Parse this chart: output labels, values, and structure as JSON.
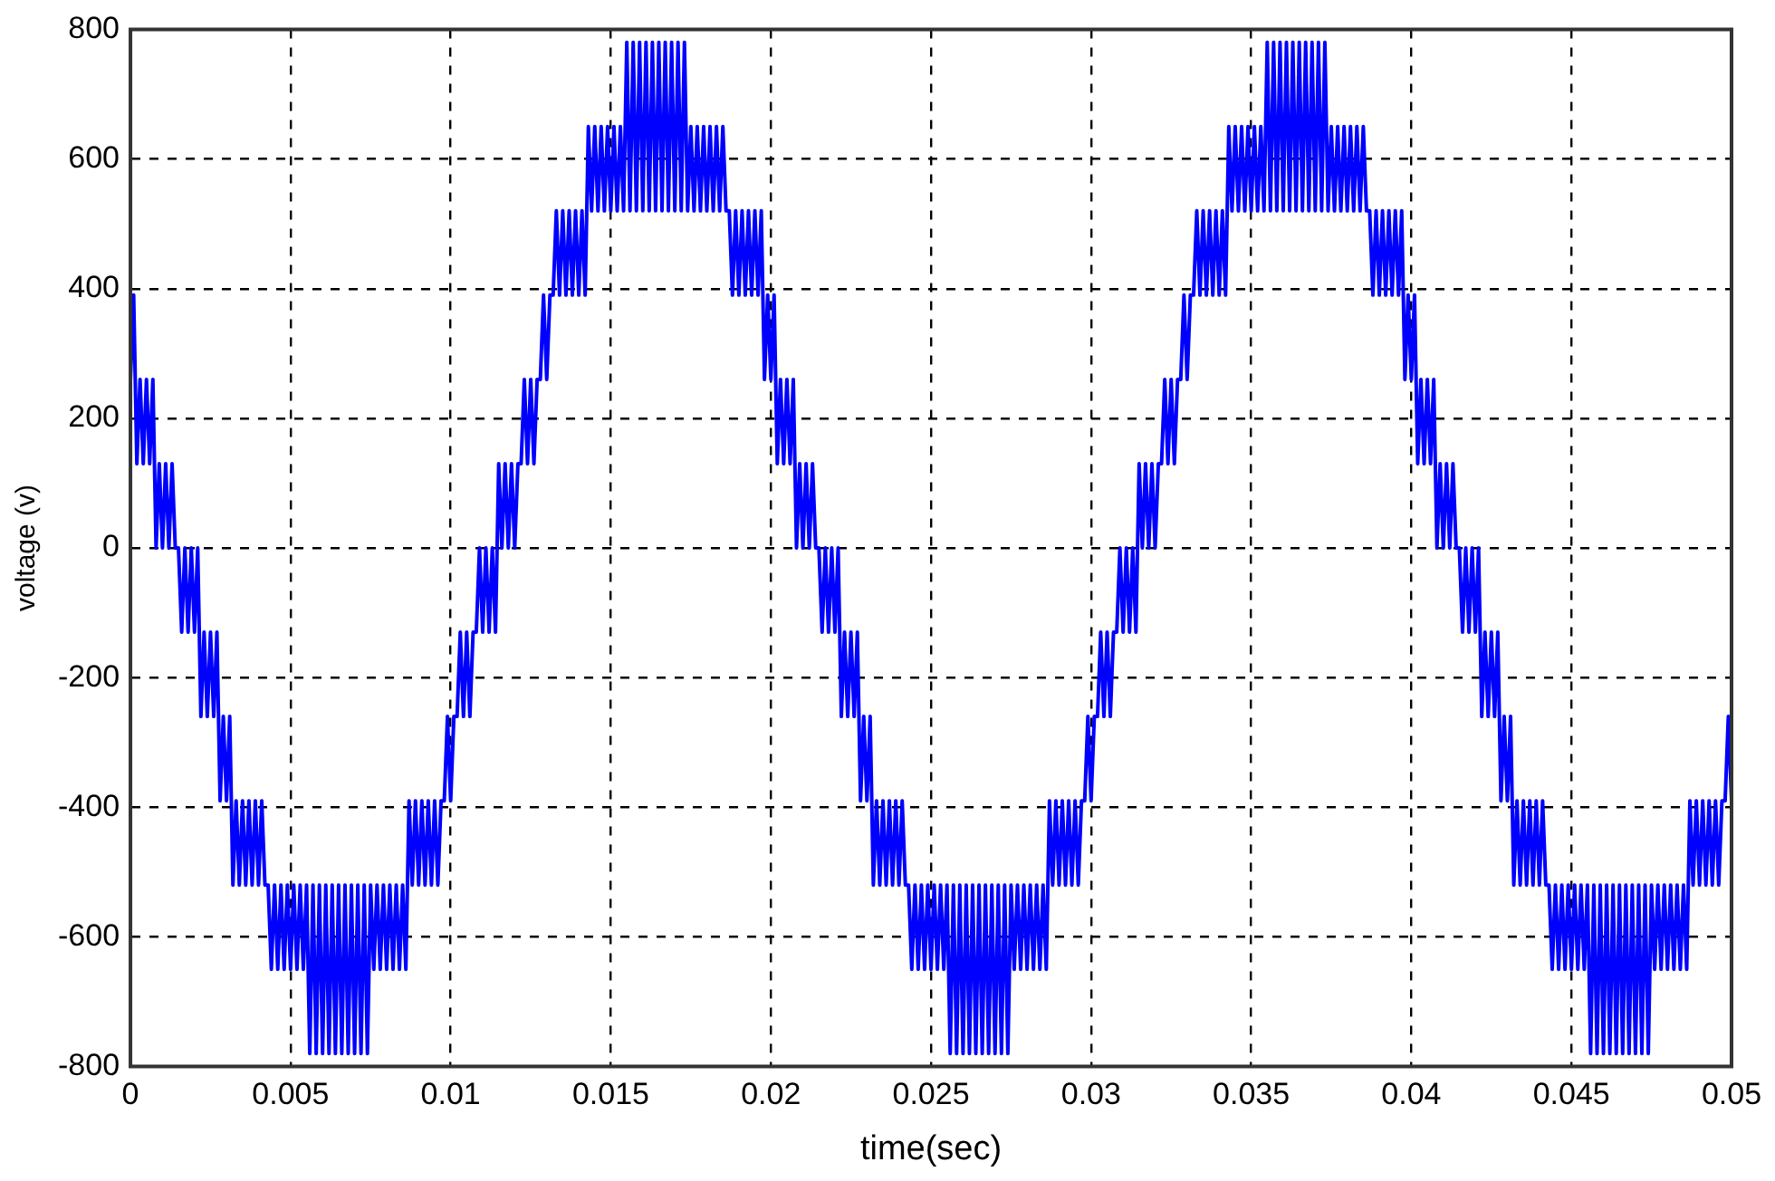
{
  "chart_data": {
    "type": "line",
    "xlabel": "time(sec)",
    "ylabel": "voltage (v)",
    "xlim": [
      0,
      0.05
    ],
    "xticks": [
      0,
      0.005,
      0.01,
      0.015,
      0.02,
      0.025,
      0.03,
      0.035,
      0.04,
      0.045,
      0.05
    ],
    "ylim": [
      -800,
      800
    ],
    "yticks": [
      -800,
      -600,
      -400,
      -200,
      0,
      200,
      400,
      600,
      800
    ],
    "grid": true,
    "x": [
      0,
      0.0001,
      0.0002,
      0.0003,
      0.0004,
      0.0005,
      0.0006,
      0.0007,
      0.0008,
      0.0009,
      0.001,
      0.0011,
      0.0012,
      0.0013,
      0.0014,
      0.0015,
      0.0016,
      0.0017,
      0.0018,
      0.0019,
      0.002,
      0.0021,
      0.0022,
      0.0023,
      0.0024,
      0.0025,
      0.0026,
      0.0027,
      0.0028,
      0.0029,
      0.003,
      0.0031,
      0.0032,
      0.0033,
      0.0034,
      0.0035,
      0.0036,
      0.0037,
      0.0038,
      0.0039,
      0.004,
      0.0041,
      0.0042,
      0.0043,
      0.0044,
      0.0045,
      0.0046,
      0.0047,
      0.0048,
      0.0049,
      0.005,
      0.0051,
      0.0052,
      0.0053,
      0.0054,
      0.0055,
      0.0056,
      0.0057,
      0.0058,
      0.0059,
      0.006,
      0.0061,
      0.0062,
      0.0063,
      0.0064,
      0.0065,
      0.0066,
      0.0067,
      0.0068,
      0.0069,
      0.007,
      0.0071,
      0.0072,
      0.0073,
      0.0074,
      0.0075,
      0.0076,
      0.0077,
      0.0078,
      0.0079,
      0.008,
      0.0081,
      0.0082,
      0.0083,
      0.0084,
      0.0085,
      0.0086,
      0.0087,
      0.0088,
      0.0089,
      0.009,
      0.0091,
      0.0092,
      0.0093,
      0.0094,
      0.0095,
      0.0096,
      0.0097,
      0.0098,
      0.0099,
      0.01,
      0.0101,
      0.0102,
      0.0103,
      0.0104,
      0.0105,
      0.0106,
      0.0107,
      0.0108,
      0.0109,
      0.011,
      0.0111,
      0.0112,
      0.0113,
      0.0114,
      0.0115,
      0.0116,
      0.0117,
      0.0118,
      0.0119,
      0.012,
      0.0121,
      0.0122,
      0.0123,
      0.0124,
      0.0125,
      0.0126,
      0.0127,
      0.0128,
      0.0129,
      0.013,
      0.0131,
      0.0132,
      0.0133,
      0.0134,
      0.0135,
      0.0136,
      0.0137,
      0.0138,
      0.0139,
      0.014,
      0.0141,
      0.0142,
      0.0143,
      0.0144,
      0.0145,
      0.0146,
      0.0147,
      0.0148,
      0.0149,
      0.015,
      0.0151,
      0.0152,
      0.0153,
      0.0154,
      0.0155,
      0.0156,
      0.0157,
      0.0158,
      0.0159,
      0.016,
      0.0161,
      0.0162,
      0.0163,
      0.0164,
      0.0165,
      0.0166,
      0.0167,
      0.0168,
      0.0169,
      0.017,
      0.0171,
      0.0172,
      0.0173,
      0.0174,
      0.0175,
      0.0176,
      0.0177,
      0.0178,
      0.0179,
      0.018,
      0.0181,
      0.0182,
      0.0183,
      0.0184,
      0.0185,
      0.0186,
      0.0187,
      0.0188,
      0.0189,
      0.019,
      0.0191,
      0.0192,
      0.0193,
      0.0194,
      0.0195,
      0.0196,
      0.0197,
      0.0198,
      0.0199,
      0.02,
      0.0201,
      0.0202,
      0.0203,
      0.0204,
      0.0205,
      0.0206,
      0.0207,
      0.0208,
      0.0209,
      0.021,
      0.0211,
      0.0212,
      0.0213,
      0.0214,
      0.0215,
      0.0216,
      0.0217,
      0.0218,
      0.0219,
      0.022,
      0.0221,
      0.0222,
      0.0223,
      0.0224,
      0.0225,
      0.0226,
      0.0227,
      0.0228,
      0.0229,
      0.023,
      0.0231,
      0.0232,
      0.0233,
      0.0234,
      0.0235,
      0.0236,
      0.0237,
      0.0238,
      0.0239,
      0.024,
      0.0241,
      0.0242,
      0.0243,
      0.0244,
      0.0245,
      0.0246,
      0.0247,
      0.0248,
      0.0249,
      0.025,
      0.0251,
      0.0252,
      0.0253,
      0.0254,
      0.0255,
      0.0256,
      0.0257,
      0.0258,
      0.0259,
      0.026,
      0.0261,
      0.0262,
      0.0263,
      0.0264,
      0.0265,
      0.0266,
      0.0267,
      0.0268,
      0.0269,
      0.027,
      0.0271,
      0.0272,
      0.0273,
      0.0274,
      0.0275,
      0.0276,
      0.0277,
      0.0278,
      0.0279,
      0.028,
      0.0281,
      0.0282,
      0.0283,
      0.0284,
      0.0285,
      0.0286,
      0.0287,
      0.0288,
      0.0289,
      0.029,
      0.0291,
      0.0292,
      0.0293,
      0.0294,
      0.0295,
      0.0296,
      0.0297,
      0.0298,
      0.0299,
      0.03,
      0.0301,
      0.0302,
      0.0303,
      0.0304,
      0.0305,
      0.0306,
      0.0307,
      0.0308,
      0.0309,
      0.031,
      0.0311,
      0.0312,
      0.0313,
      0.0314,
      0.0315,
      0.0316,
      0.0317,
      0.0318,
      0.0319,
      0.032,
      0.0321,
      0.0322,
      0.0323,
      0.0324,
      0.0325,
      0.0326,
      0.0327,
      0.0328,
      0.0329,
      0.033,
      0.0331,
      0.0332,
      0.0333,
      0.0334,
      0.0335,
      0.0336,
      0.0337,
      0.0338,
      0.0339,
      0.034,
      0.0341,
      0.0342,
      0.0343,
      0.0344,
      0.0345,
      0.0346,
      0.0347,
      0.0348,
      0.0349,
      0.035,
      0.0351,
      0.0352,
      0.0353,
      0.0354,
      0.0355,
      0.0356,
      0.0357,
      0.0358,
      0.0359,
      0.036,
      0.0361,
      0.0362,
      0.0363,
      0.0364,
      0.0365,
      0.0366,
      0.0367,
      0.0368,
      0.0369,
      0.037,
      0.0371,
      0.0372,
      0.0373,
      0.0374,
      0.0375,
      0.0376,
      0.0377,
      0.0378,
      0.0379,
      0.038,
      0.0381,
      0.0382,
      0.0383,
      0.0384,
      0.0385,
      0.0386,
      0.0387,
      0.0388,
      0.0389,
      0.039,
      0.0391,
      0.0392,
      0.0393,
      0.0394,
      0.0395,
      0.0396,
      0.0397,
      0.0398,
      0.0399,
      0.04,
      0.0401,
      0.0402,
      0.0403,
      0.0404,
      0.0405,
      0.0406,
      0.0407,
      0.0408,
      0.0409,
      0.041,
      0.0411,
      0.0412,
      0.0413,
      0.0414,
      0.0415,
      0.0416,
      0.0417,
      0.0418,
      0.0419,
      0.042,
      0.0421,
      0.0422,
      0.0423,
      0.0424,
      0.0425,
      0.0426,
      0.0427,
      0.0428,
      0.0429,
      0.043,
      0.0431,
      0.0432,
      0.0433,
      0.0434,
      0.0435,
      0.0436,
      0.0437,
      0.0438,
      0.0439,
      0.044,
      0.0441,
      0.0442,
      0.0443,
      0.0444,
      0.0445,
      0.0446,
      0.0447,
      0.0448,
      0.0449,
      0.045,
      0.0451,
      0.0452,
      0.0453,
      0.0454,
      0.0455,
      0.0456,
      0.0457,
      0.0458,
      0.0459,
      0.046,
      0.0461,
      0.0462,
      0.0463,
      0.0464,
      0.0465,
      0.0466,
      0.0467,
      0.0468,
      0.0469,
      0.047,
      0.0471,
      0.0472,
      0.0473,
      0.0474,
      0.0475,
      0.0476,
      0.0477,
      0.0478,
      0.0479,
      0.048,
      0.0481,
      0.0482,
      0.0483,
      0.0484,
      0.0485,
      0.0486,
      0.0487,
      0.0488,
      0.0489,
      0.049,
      0.0491,
      0.0492,
      0.0493,
      0.0494,
      0.0495,
      0.0496,
      0.0497,
      0.0498,
      0.0499,
      0.05
    ],
    "series": [
      {
        "color": "#0000ff",
        "values": [
          260,
          390,
          130,
          260,
          130,
          260,
          130,
          260,
          0,
          130,
          0,
          130,
          0,
          130,
          0,
          0,
          -130,
          0,
          -130,
          0,
          -130,
          0,
          -260,
          -130,
          -260,
          -130,
          -260,
          -130,
          -390,
          -260,
          -390,
          -260,
          -520,
          -390,
          -520,
          -390,
          -520,
          -390,
          -520,
          -390,
          -520,
          -390,
          -520,
          -520,
          -650,
          -520,
          -650,
          -520,
          -650,
          -520,
          -650,
          -520,
          -650,
          -520,
          -650,
          -520,
          -780,
          -520,
          -780,
          -520,
          -780,
          -520,
          -780,
          -520,
          -780,
          -520,
          -780,
          -520,
          -780,
          -520,
          -780,
          -520,
          -780,
          -520,
          -780,
          -520,
          -650,
          -520,
          -650,
          -520,
          -650,
          -520,
          -650,
          -520,
          -650,
          -520,
          -650,
          -390,
          -520,
          -390,
          -520,
          -390,
          -520,
          -390,
          -520,
          -390,
          -520,
          -390,
          -390,
          -260,
          -390,
          -260,
          -260,
          -130,
          -260,
          -130,
          -260,
          -130,
          -130,
          0,
          -130,
          0,
          -130,
          0,
          -130,
          130,
          0,
          130,
          0,
          130,
          0,
          130,
          130,
          260,
          130,
          260,
          130,
          260,
          260,
          390,
          260,
          390,
          390,
          520,
          390,
          520,
          390,
          520,
          390,
          520,
          390,
          520,
          390,
          650,
          520,
          650,
          520,
          650,
          520,
          650,
          520,
          650,
          520,
          650,
          520,
          780,
          520,
          780,
          520,
          780,
          520,
          780,
          520,
          780,
          520,
          780,
          520,
          780,
          520,
          780,
          520,
          780,
          520,
          780,
          520,
          650,
          520,
          650,
          520,
          650,
          520,
          650,
          520,
          650,
          520,
          650,
          520,
          520,
          390,
          520,
          390,
          520,
          390,
          520,
          390,
          520,
          390,
          520,
          260,
          390,
          260,
          390,
          130,
          260,
          130,
          260,
          130,
          260,
          0,
          130,
          0,
          130,
          0,
          130,
          0,
          0,
          -130,
          0,
          -130,
          0,
          -130,
          0,
          -260,
          -130,
          -260,
          -130,
          -260,
          -130,
          -390,
          -260,
          -390,
          -260,
          -520,
          -390,
          -520,
          -390,
          -520,
          -390,
          -520,
          -390,
          -520,
          -390,
          -520,
          -520,
          -650,
          -520,
          -650,
          -520,
          -650,
          -520,
          -650,
          -520,
          -650,
          -520,
          -650,
          -520,
          -780,
          -520,
          -780,
          -520,
          -780,
          -520,
          -780,
          -520,
          -780,
          -520,
          -780,
          -520,
          -780,
          -520,
          -780,
          -520,
          -780,
          -520,
          -780,
          -520,
          -650,
          -520,
          -650,
          -520,
          -650,
          -520,
          -650,
          -520,
          -650,
          -520,
          -650,
          -390,
          -520,
          -390,
          -520,
          -390,
          -520,
          -390,
          -520,
          -390,
          -520,
          -390,
          -390,
          -260,
          -390,
          -260,
          -260,
          -130,
          -260,
          -130,
          -260,
          -130,
          -130,
          0,
          -130,
          0,
          -130,
          0,
          -130,
          130,
          0,
          130,
          0,
          130,
          0,
          130,
          130,
          260,
          130,
          260,
          130,
          260,
          260,
          390,
          260,
          390,
          390,
          520,
          390,
          520,
          390,
          520,
          390,
          520,
          390,
          520,
          390,
          650,
          520,
          650,
          520,
          650,
          520,
          650,
          520,
          650,
          520,
          650,
          520,
          780,
          520,
          780,
          520,
          780,
          520,
          780,
          520,
          780,
          520,
          780,
          520,
          780,
          520,
          780,
          520,
          780,
          520,
          780,
          520,
          650,
          520,
          650,
          520,
          650,
          520,
          650,
          520,
          650,
          520,
          650,
          520,
          520,
          390,
          520,
          390,
          520,
          390,
          520,
          390,
          520,
          390,
          520,
          260,
          390,
          260,
          390,
          130,
          260,
          130,
          260,
          130,
          260,
          0,
          130,
          0,
          130,
          0,
          130,
          0,
          0,
          -130,
          0,
          -130,
          0,
          -130,
          0,
          -260,
          -130,
          -260,
          -130,
          -260,
          -130,
          -390,
          -260,
          -390,
          -260,
          -520,
          -390,
          -520,
          -390,
          -520,
          -390,
          -520,
          -390,
          -520,
          -390,
          -520,
          -520,
          -650,
          -520,
          -650,
          -520,
          -650,
          -520,
          -650,
          -520,
          -650,
          -520,
          -650,
          -520,
          -780,
          -520,
          -780,
          -520,
          -780,
          -520,
          -780,
          -520,
          -780,
          -520,
          -780,
          -520,
          -780,
          -520,
          -780,
          -520,
          -780,
          -520,
          -780,
          -520,
          -650,
          -520,
          -650,
          -520,
          -650,
          -520,
          -650,
          -520,
          -650,
          -520,
          -650,
          -390,
          -520,
          -390,
          -520,
          -390,
          -520,
          -390,
          -520,
          -390,
          -520,
          -390,
          -390,
          -260,
          -390
        ]
      }
    ]
  }
}
